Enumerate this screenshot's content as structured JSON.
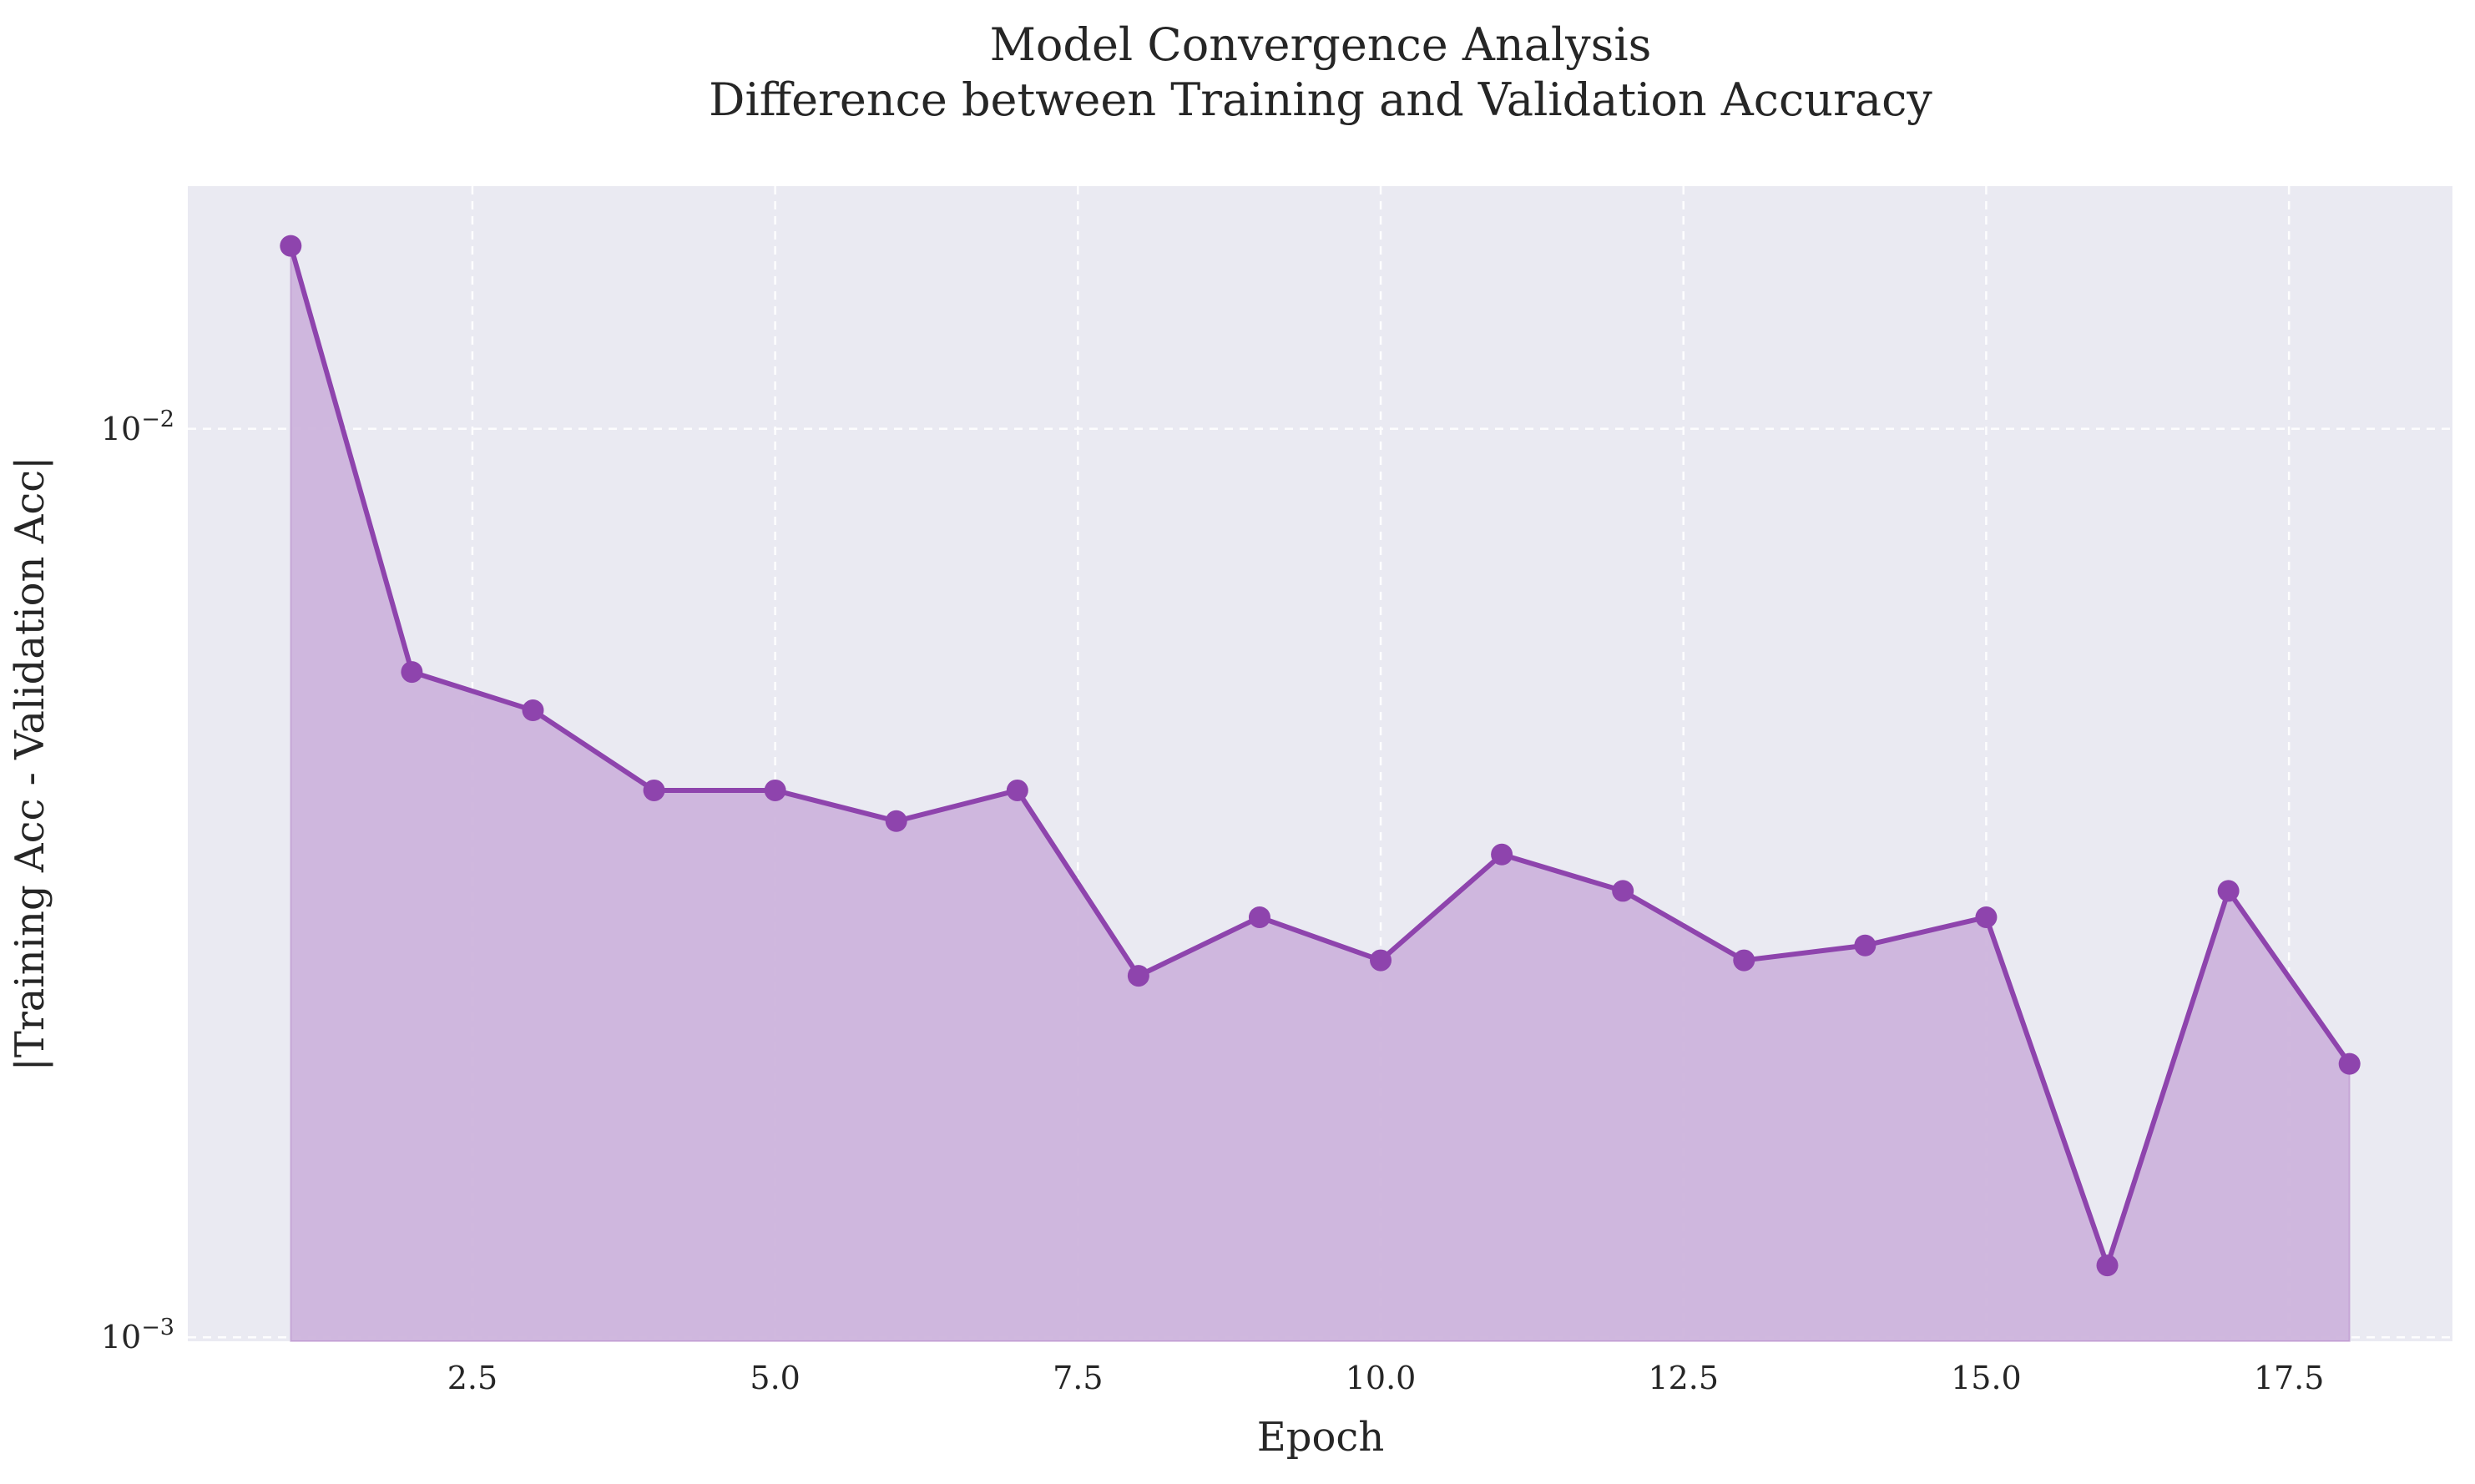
{
  "chart_data": {
    "type": "area",
    "title": "Model Convergence Analysis",
    "subtitle": "Difference between Training and Validation Accuracy",
    "xlabel": "Epoch",
    "ylabel": "|Training Acc - Validation Acc|",
    "x_scale": "linear",
    "y_scale": "log",
    "xlim": [
      0.15,
      18.85
    ],
    "ylim": [
      0.00099,
      0.0185
    ],
    "x_ticks": [
      2.5,
      5.0,
      7.5,
      10.0,
      12.5,
      15.0,
      17.5
    ],
    "x_tick_labels": [
      "2.5",
      "5.0",
      "7.5",
      "10.0",
      "12.5",
      "15.0",
      "17.5"
    ],
    "y_ticks": [
      0.001,
      0.01
    ],
    "y_tick_labels": [
      {
        "base": "10",
        "exp": "−3"
      },
      {
        "base": "10",
        "exp": "−2"
      }
    ],
    "grid": true,
    "grid_style": "dashed",
    "line_color": "#8e44ad",
    "fill_color": "#cdb4dc",
    "plot_background": "#eaeaf2",
    "series": [
      {
        "x": [
          1,
          2,
          3,
          4,
          5,
          6,
          7,
          8,
          9,
          10,
          11,
          12,
          13,
          14,
          15,
          16,
          17,
          18
        ],
        "values": [
          0.0159,
          0.0054,
          0.0049,
          0.004,
          0.004,
          0.0037,
          0.004,
          0.0025,
          0.0029,
          0.0026,
          0.0034,
          0.0031,
          0.0026,
          0.0027,
          0.0029,
          0.0012,
          0.0031,
          0.002
        ]
      }
    ]
  }
}
